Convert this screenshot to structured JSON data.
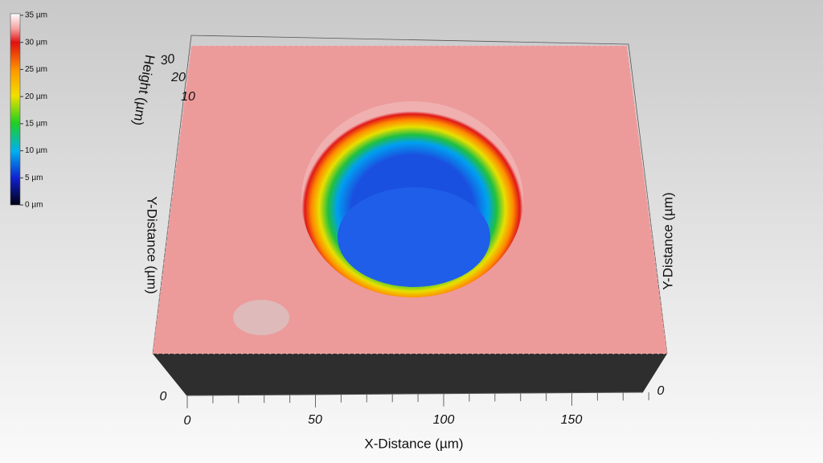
{
  "colorbar": {
    "labels": [
      "35 µm",
      "30 µm",
      "25 µm",
      "20 µm",
      "15 µm",
      "10 µm",
      "5 µm",
      "0 µm"
    ]
  },
  "z_axis": {
    "title": "Height (µm)",
    "ticks": [
      "30",
      "20",
      "10"
    ]
  },
  "y_axis_left": {
    "title": "Y-Distance (µm)",
    "tick": "0"
  },
  "y_axis_right": {
    "title": "Y-Distance (µm)",
    "tick": "0"
  },
  "x_axis": {
    "title": "X-Distance (µm)",
    "ticks": [
      "0",
      "50",
      "100",
      "150"
    ]
  }
}
